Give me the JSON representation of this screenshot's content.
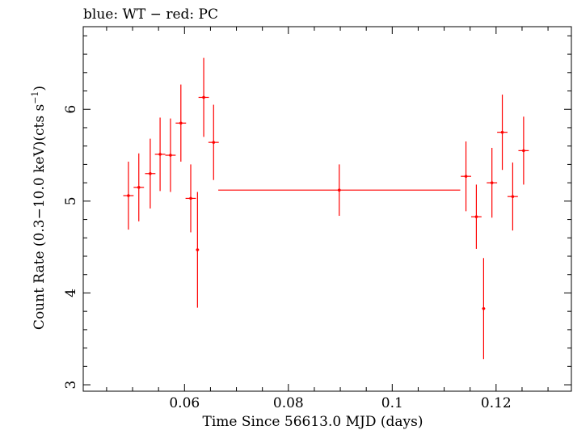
{
  "chart_data": {
    "type": "scatter",
    "title": "blue: WT − red: PC",
    "xlabel": "Time Since 56613.0 MJD (days)",
    "ylabel_main": "Count Rate (0.3−10.0 keV)(cts s",
    "ylabel_sup": "−1",
    "ylabel_close": ")",
    "xlim": [
      0.0405,
      0.1345
    ],
    "ylim": [
      2.93,
      6.9
    ],
    "xticks": [
      0.06,
      0.08,
      0.1,
      0.12
    ],
    "xtick_labels": [
      "0.06",
      "0.08",
      "0.1",
      "0.12"
    ],
    "yticks": [
      3,
      4,
      5,
      6
    ],
    "ytick_labels": [
      "3",
      "4",
      "5",
      "6"
    ],
    "grid": false,
    "series": [
      {
        "name": "PC",
        "color": "#ff0000",
        "points": [
          {
            "x": 0.0492,
            "xerr": 0.001,
            "y": 5.06,
            "yerr": 0.37
          },
          {
            "x": 0.0512,
            "xerr": 0.001,
            "y": 5.15,
            "yerr": 0.37
          },
          {
            "x": 0.0534,
            "xerr": 0.001,
            "y": 5.3,
            "yerr": 0.38
          },
          {
            "x": 0.0553,
            "xerr": 0.001,
            "y": 5.51,
            "yerr": 0.4
          },
          {
            "x": 0.0573,
            "xerr": 0.001,
            "y": 5.5,
            "yerr": 0.4
          },
          {
            "x": 0.0593,
            "xerr": 0.001,
            "y": 5.85,
            "yerr": 0.42
          },
          {
            "x": 0.0612,
            "xerr": 0.001,
            "y": 5.03,
            "yerr": 0.37
          },
          {
            "x": 0.0625,
            "xerr": 0.0003,
            "y": 4.47,
            "yerr": 0.63
          },
          {
            "x": 0.0637,
            "xerr": 0.001,
            "y": 6.13,
            "yerr": 0.43
          },
          {
            "x": 0.0656,
            "xerr": 0.001,
            "y": 5.64,
            "yerr": 0.41
          },
          {
            "x": 0.0898,
            "xerr": 0.0233,
            "y": 5.12,
            "yerr": 0.28
          },
          {
            "x": 0.1142,
            "xerr": 0.001,
            "y": 5.27,
            "yerr": 0.38
          },
          {
            "x": 0.1162,
            "xerr": 0.001,
            "y": 4.83,
            "yerr": 0.35
          },
          {
            "x": 0.1176,
            "xerr": 0.0003,
            "y": 3.83,
            "yerr": 0.55
          },
          {
            "x": 0.1192,
            "xerr": 0.001,
            "y": 5.2,
            "yerr": 0.38
          },
          {
            "x": 0.1212,
            "xerr": 0.001,
            "y": 5.75,
            "yerr": 0.41
          },
          {
            "x": 0.1232,
            "xerr": 0.001,
            "y": 5.05,
            "yerr": 0.37
          },
          {
            "x": 0.1253,
            "xerr": 0.001,
            "y": 5.55,
            "yerr": 0.37
          }
        ]
      }
    ]
  }
}
